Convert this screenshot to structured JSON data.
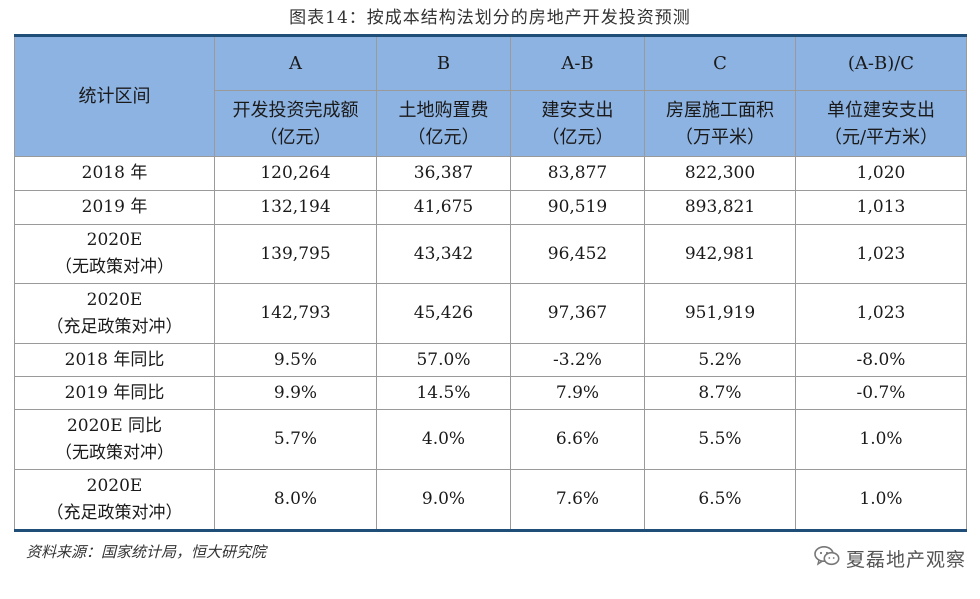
{
  "title": "图表14：按成本结构法划分的房地产开发投资预测",
  "header": {
    "row_label": "统计区间",
    "columns": [
      {
        "code": "A",
        "name": "开发投资完成额",
        "unit": "（亿元）"
      },
      {
        "code": "B",
        "name": "土地购置费",
        "unit": "（亿元）"
      },
      {
        "code": "A-B",
        "name": "建安支出",
        "unit": "（亿元）"
      },
      {
        "code": "C",
        "name": "房屋施工面积",
        "unit": "（万平米）"
      },
      {
        "code": "(A-B)/C",
        "name": "单位建安支出",
        "unit": "（元/平方米）"
      }
    ]
  },
  "rows": [
    {
      "label": [
        "2018 年"
      ],
      "values": [
        "120,264",
        "36,387",
        "83,877",
        "822,300",
        "1,020"
      ]
    },
    {
      "label": [
        "2019 年"
      ],
      "values": [
        "132,194",
        "41,675",
        "90,519",
        "893,821",
        "1,013"
      ]
    },
    {
      "label": [
        "2020E",
        "（无政策对冲）"
      ],
      "values": [
        "139,795",
        "43,342",
        "96,452",
        "942,981",
        "1,023"
      ]
    },
    {
      "label": [
        "2020E",
        "（充足政策对冲）"
      ],
      "values": [
        "142,793",
        "45,426",
        "97,367",
        "951,919",
        "1,023"
      ]
    },
    {
      "label": [
        "2018 年同比"
      ],
      "values": [
        "9.5%",
        "57.0%",
        "-3.2%",
        "5.2%",
        "-8.0%"
      ]
    },
    {
      "label": [
        "2019 年同比"
      ],
      "values": [
        "9.9%",
        "14.5%",
        "7.9%",
        "8.7%",
        "-0.7%"
      ]
    },
    {
      "label": [
        "2020E 同比",
        "（无政策对冲）"
      ],
      "values": [
        "5.7%",
        "4.0%",
        "6.6%",
        "5.5%",
        "1.0%"
      ]
    },
    {
      "label": [
        "2020E",
        "（充足政策对冲）"
      ],
      "values": [
        "8.0%",
        "9.0%",
        "7.6%",
        "6.5%",
        "1.0%"
      ]
    }
  ],
  "source": "资料来源：国家统计局，恒大研究院",
  "watermark": {
    "icon": "wechat-icon",
    "text": "夏磊地产观察"
  },
  "colors": {
    "header_bg": "#8db3e2",
    "border_accent": "#1f4e79"
  }
}
